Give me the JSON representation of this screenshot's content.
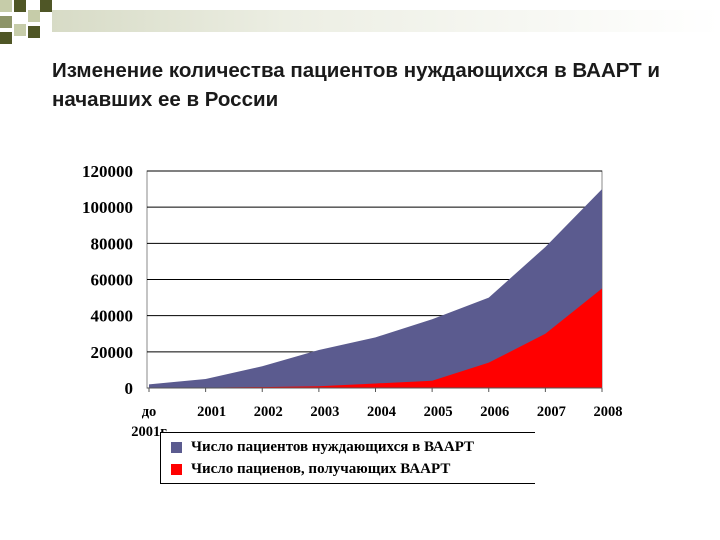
{
  "title": "Изменение количества пациентов нуждающихся в ВААРТ и начавших ее в России",
  "colors": {
    "need": "#5b5b8f",
    "receive": "#ff0000",
    "plot_bg": "#ffffff"
  },
  "chart_data": {
    "type": "area",
    "x": [
      "до 2001г",
      "2001",
      "2002",
      "2003",
      "2004",
      "2005",
      "2006",
      "2007",
      "2008"
    ],
    "ylim": [
      0,
      120000
    ],
    "yticks": [
      "0",
      "20000",
      "40000",
      "60000",
      "80000",
      "100000",
      "120000"
    ],
    "grid": true,
    "legend_position": "bottom",
    "series": [
      {
        "name": "Число пациентов нуждающихся в ВААРТ",
        "color": "#5b5b8f",
        "values": [
          2000,
          5000,
          12000,
          21000,
          28000,
          38000,
          50000,
          78000,
          110000
        ]
      },
      {
        "name": "Число пациенов, получающих ВААРТ",
        "color": "#ff0000",
        "values": [
          0,
          200,
          500,
          1000,
          2500,
          4000,
          14000,
          30000,
          55000
        ]
      }
    ]
  }
}
